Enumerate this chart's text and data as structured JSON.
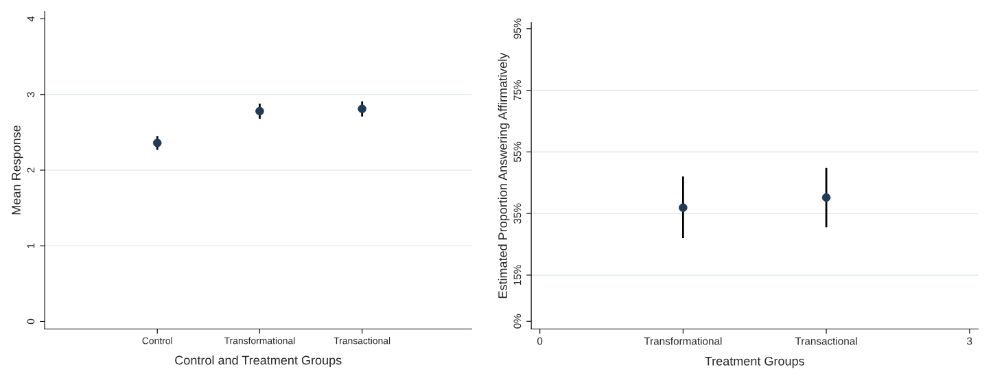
{
  "chart_data": [
    {
      "type": "scatter",
      "xlabel": "Control and Treatment Groups",
      "ylabel": "Mean Response",
      "categories": [
        "Control",
        "Transformational",
        "Transactional"
      ],
      "series": [
        {
          "color": "#1f3b57",
          "values": [
            2.36,
            2.78,
            2.81
          ],
          "errors": [
            [
              2.27,
              2.45
            ],
            [
              2.68,
              2.88
            ],
            [
              2.71,
              2.91
            ]
          ]
        }
      ],
      "ylim": [
        -0.1,
        4.1
      ],
      "yticks": [
        0,
        1,
        2,
        3,
        4
      ],
      "grid": "y",
      "marker": "circle",
      "legend": false
    },
    {
      "type": "scatter",
      "xlabel": "Treatment Groups",
      "ylabel": "Estimated Proportion Answering Affirmatively",
      "x": [
        1,
        2
      ],
      "series": [
        {
          "color": "#1f3b57",
          "values": [
            36.9,
            40.2
          ],
          "errors": [
            [
              27.0,
              47.0
            ],
            [
              30.5,
              49.8
            ]
          ]
        }
      ],
      "xlim": [
        -0.06,
        3.06
      ],
      "xticks": [
        0,
        {
          "value": 1,
          "label": "Transformational"
        },
        {
          "value": 2,
          "label": "Transactional"
        },
        3
      ],
      "ylim": [
        -2.5,
        97
      ],
      "yticks": [
        {
          "value": 0,
          "label": "0%"
        },
        {
          "value": 15,
          "label": "15%"
        },
        {
          "value": 35,
          "label": "35%"
        },
        {
          "value": 55,
          "label": "55%"
        },
        {
          "value": 75,
          "label": "75%"
        },
        {
          "value": 95,
          "label": "95%"
        }
      ],
      "grid": "y",
      "marker": "circle",
      "legend": false
    }
  ]
}
